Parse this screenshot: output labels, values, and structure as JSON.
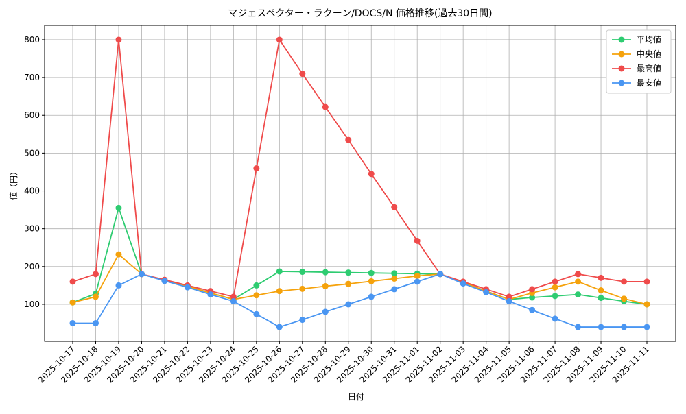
{
  "chart_data": {
    "type": "line",
    "title": "マジェスペクター・ラクーン/DOCS/N 価格推移(過去30日間)",
    "xlabel": "日付",
    "ylabel": "値（円）",
    "categories": [
      "2025-10-17",
      "2025-10-18",
      "2025-10-19",
      "2025-10-20",
      "2025-10-21",
      "2025-10-22",
      "2025-10-23",
      "2025-10-24",
      "2025-10-25",
      "2025-10-26",
      "2025-10-27",
      "2025-10-28",
      "2025-10-29",
      "2025-10-30",
      "2025-10-31",
      "2025-11-01",
      "2025-11-02",
      "2025-11-03",
      "2025-11-04",
      "2025-11-05",
      "2025-11-06",
      "2025-11-07",
      "2025-11-08",
      "2025-11-09",
      "2025-11-10",
      "2025-11-11"
    ],
    "series": [
      {
        "name": "平均値",
        "color": "#2ecc71",
        "values": [
          105,
          128,
          355,
          180,
          163,
          148,
          130,
          113,
          150,
          187,
          186,
          185,
          184,
          183,
          182,
          181,
          180,
          158,
          135,
          113,
          118,
          122,
          126,
          117,
          108,
          100
        ]
      },
      {
        "name": "中央値",
        "color": "#f5a20c",
        "values": [
          105,
          120,
          232,
          180,
          163,
          148,
          130,
          113,
          124,
          135,
          141,
          148,
          154,
          161,
          168,
          175,
          180,
          158,
          135,
          113,
          130,
          145,
          160,
          137,
          115,
          100
        ]
      },
      {
        "name": "最高値",
        "color": "#ef4b4b",
        "values": [
          160,
          180,
          800,
          180,
          165,
          150,
          135,
          120,
          460,
          800,
          710,
          622,
          535,
          445,
          357,
          268,
          180,
          160,
          140,
          120,
          140,
          160,
          180,
          170,
          160,
          160
        ]
      },
      {
        "name": "最安値",
        "color": "#4a96f2",
        "values": [
          50,
          50,
          150,
          180,
          162,
          145,
          126,
          108,
          74,
          40,
          59,
          80,
          100,
          120,
          140,
          160,
          180,
          155,
          132,
          108,
          85,
          62,
          40,
          40,
          40,
          40
        ]
      }
    ],
    "ylim": [
      2,
      838
    ],
    "yticks": [
      100,
      200,
      300,
      400,
      500,
      600,
      700,
      800
    ],
    "grid": true,
    "legend": "upper right"
  }
}
